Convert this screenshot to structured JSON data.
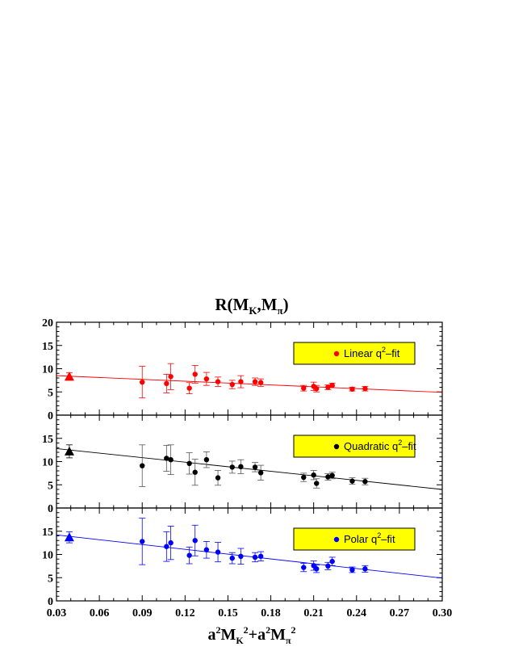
{
  "chart_data": {
    "type": "scatter",
    "title": "R(M_K,M_π)",
    "xlabel": "a²M_K² + a²M_π²",
    "xlim": [
      0.03,
      0.3
    ],
    "x_ticks": [
      "0.03",
      "0.06",
      "0.09",
      "0.12",
      "0.15",
      "0.18",
      "0.21",
      "0.24",
      "0.27",
      "0.30"
    ],
    "panels": [
      {
        "name": "Linear q²-fit",
        "legend_parts": {
          "pre": "Linear q",
          "sup": "2",
          "post": "–fit"
        },
        "color": "#ff0000",
        "ylim": [
          0,
          20
        ],
        "y_ticks": [
          "0",
          "5",
          "10",
          "15",
          "20"
        ],
        "fit_line": {
          "x": [
            0.03,
            0.3
          ],
          "y": [
            8.5,
            4.9
          ]
        },
        "extrapolated": {
          "x": 0.039,
          "y": 8.3,
          "err": 0.8
        },
        "points": [
          {
            "x": 0.09,
            "y": 7.1,
            "err": 3.4
          },
          {
            "x": 0.107,
            "y": 6.8,
            "err": 2.0
          },
          {
            "x": 0.11,
            "y": 8.3,
            "err": 2.8
          },
          {
            "x": 0.123,
            "y": 5.8,
            "err": 1.2
          },
          {
            "x": 0.127,
            "y": 8.8,
            "err": 1.9
          },
          {
            "x": 0.135,
            "y": 7.8,
            "err": 1.4
          },
          {
            "x": 0.143,
            "y": 7.2,
            "err": 1.0
          },
          {
            "x": 0.153,
            "y": 6.6,
            "err": 0.9
          },
          {
            "x": 0.159,
            "y": 7.2,
            "err": 1.3
          },
          {
            "x": 0.169,
            "y": 7.2,
            "err": 0.8
          },
          {
            "x": 0.173,
            "y": 7.0,
            "err": 0.8
          },
          {
            "x": 0.203,
            "y": 5.8,
            "err": 0.6
          },
          {
            "x": 0.21,
            "y": 6.2,
            "err": 0.9
          },
          {
            "x": 0.212,
            "y": 5.7,
            "err": 0.7
          },
          {
            "x": 0.22,
            "y": 6.0,
            "err": 0.5
          },
          {
            "x": 0.223,
            "y": 6.4,
            "err": 0.5
          },
          {
            "x": 0.237,
            "y": 5.6,
            "err": 0.4
          },
          {
            "x": 0.246,
            "y": 5.7,
            "err": 0.5
          }
        ]
      },
      {
        "name": "Quadratic q²-fit",
        "legend_parts": {
          "pre": "Quadratic q",
          "sup": "2",
          "post": "–fit"
        },
        "color": "#000000",
        "ylim": [
          0,
          20
        ],
        "y_ticks": [
          "0",
          "5",
          "10",
          "15",
          ""
        ],
        "fit_line": {
          "x": [
            0.03,
            0.3
          ],
          "y": [
            12.8,
            4.0
          ]
        },
        "extrapolated": {
          "x": 0.039,
          "y": 12.2,
          "err": 1.4
        },
        "points": [
          {
            "x": 0.09,
            "y": 9.1,
            "err": 4.5
          },
          {
            "x": 0.107,
            "y": 10.7,
            "err": 2.8
          },
          {
            "x": 0.11,
            "y": 10.4,
            "err": 3.2
          },
          {
            "x": 0.123,
            "y": 9.6,
            "err": 2.3
          },
          {
            "x": 0.127,
            "y": 7.7,
            "err": 2.8
          },
          {
            "x": 0.135,
            "y": 10.4,
            "err": 1.7
          },
          {
            "x": 0.143,
            "y": 6.5,
            "err": 1.6
          },
          {
            "x": 0.153,
            "y": 8.8,
            "err": 1.3
          },
          {
            "x": 0.159,
            "y": 8.9,
            "err": 1.5
          },
          {
            "x": 0.169,
            "y": 8.8,
            "err": 1.0
          },
          {
            "x": 0.173,
            "y": 7.6,
            "err": 1.6
          },
          {
            "x": 0.203,
            "y": 6.6,
            "err": 0.9
          },
          {
            "x": 0.21,
            "y": 7.1,
            "err": 1.0
          },
          {
            "x": 0.212,
            "y": 5.3,
            "err": 1.0
          },
          {
            "x": 0.22,
            "y": 6.7,
            "err": 0.7
          },
          {
            "x": 0.223,
            "y": 7.0,
            "err": 0.7
          },
          {
            "x": 0.237,
            "y": 5.8,
            "err": 0.7
          },
          {
            "x": 0.246,
            "y": 5.7,
            "err": 0.7
          }
        ]
      },
      {
        "name": "Polar q²-fit",
        "legend_parts": {
          "pre": "Polar q",
          "sup": "2",
          "post": "–fit"
        },
        "color": "#0000ff",
        "ylim": [
          0,
          20
        ],
        "y_ticks": [
          "0",
          "5",
          "10",
          "15",
          ""
        ],
        "fit_line": {
          "x": [
            0.03,
            0.3
          ],
          "y": [
            14.2,
            4.9
          ]
        },
        "extrapolated": {
          "x": 0.039,
          "y": 13.7,
          "err": 1.2
        },
        "points": [
          {
            "x": 0.09,
            "y": 12.8,
            "err": 5.0
          },
          {
            "x": 0.107,
            "y": 11.7,
            "err": 3.2
          },
          {
            "x": 0.11,
            "y": 12.5,
            "err": 3.6
          },
          {
            "x": 0.123,
            "y": 9.8,
            "err": 1.8
          },
          {
            "x": 0.127,
            "y": 13.0,
            "err": 3.3
          },
          {
            "x": 0.135,
            "y": 11.0,
            "err": 1.8
          },
          {
            "x": 0.143,
            "y": 10.5,
            "err": 2.1
          },
          {
            "x": 0.153,
            "y": 9.2,
            "err": 1.2
          },
          {
            "x": 0.159,
            "y": 9.6,
            "err": 1.7
          },
          {
            "x": 0.169,
            "y": 9.4,
            "err": 1.0
          },
          {
            "x": 0.173,
            "y": 9.6,
            "err": 1.0
          },
          {
            "x": 0.203,
            "y": 7.2,
            "err": 0.9
          },
          {
            "x": 0.21,
            "y": 7.6,
            "err": 1.0
          },
          {
            "x": 0.212,
            "y": 6.9,
            "err": 0.8
          },
          {
            "x": 0.22,
            "y": 7.5,
            "err": 0.8
          },
          {
            "x": 0.223,
            "y": 8.5,
            "err": 0.9
          },
          {
            "x": 0.237,
            "y": 6.7,
            "err": 0.6
          },
          {
            "x": 0.246,
            "y": 6.9,
            "err": 0.7
          }
        ]
      }
    ]
  },
  "colors": {
    "legend_box": "#ffff00",
    "frame": "#000000"
  }
}
